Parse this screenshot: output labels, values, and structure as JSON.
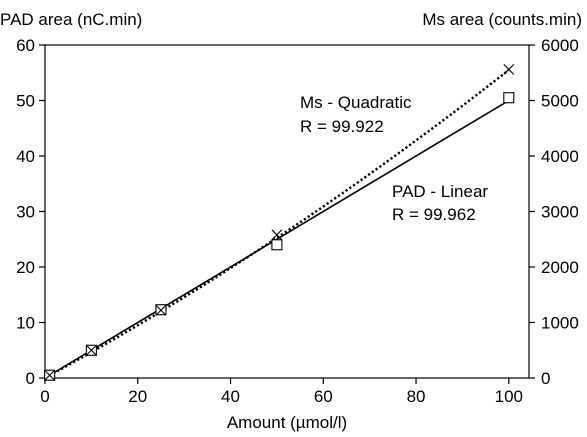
{
  "chart_data": {
    "type": "line",
    "xlabel": "Amount (µmol/l)",
    "ylabel_left": "PAD area (nC.min)",
    "ylabel_right": "Ms area (counts.min)",
    "xlim": [
      0,
      105
    ],
    "ylim_left": [
      0,
      60
    ],
    "ylim_right": [
      0,
      6000
    ],
    "x_ticks": [
      0,
      20,
      40,
      60,
      80,
      100
    ],
    "y_left_ticks": [
      0,
      10,
      20,
      30,
      40,
      50,
      60
    ],
    "y_right_ticks": [
      0,
      1000,
      2000,
      3000,
      4000,
      5000,
      6000
    ],
    "grid": false,
    "series": [
      {
        "axis": "left",
        "marker": "square",
        "line": "solid",
        "points": [
          {
            "x": 1,
            "y": 0.5
          },
          {
            "x": 10,
            "y": 5
          },
          {
            "x": 25,
            "y": 12.3
          },
          {
            "x": 50,
            "y": 24
          },
          {
            "x": 100,
            "y": 50.5
          }
        ],
        "fit": {
          "kind": "linear",
          "from": [
            0,
            0
          ],
          "to": [
            100,
            50
          ]
        }
      },
      {
        "axis": "right",
        "marker": "x",
        "line": "dotted",
        "points": [
          {
            "x": 1,
            "y": 50
          },
          {
            "x": 10,
            "y": 500
          },
          {
            "x": 25,
            "y": 1220
          },
          {
            "x": 50,
            "y": 2580
          },
          {
            "x": 100,
            "y": 5560
          }
        ],
        "fit": {
          "kind": "quadratic",
          "a": 0.1,
          "b": 45.5,
          "c": 0
        }
      }
    ],
    "annotations": [
      {
        "lines": [
          "Ms - Quadratic",
          "R = 99.922"
        ],
        "at": {
          "x": 55,
          "y_left": 45
        }
      },
      {
        "lines": [
          "PAD - Linear",
          "R = 99.962"
        ],
        "at": {
          "x": 72,
          "y_left": 30
        }
      }
    ]
  }
}
